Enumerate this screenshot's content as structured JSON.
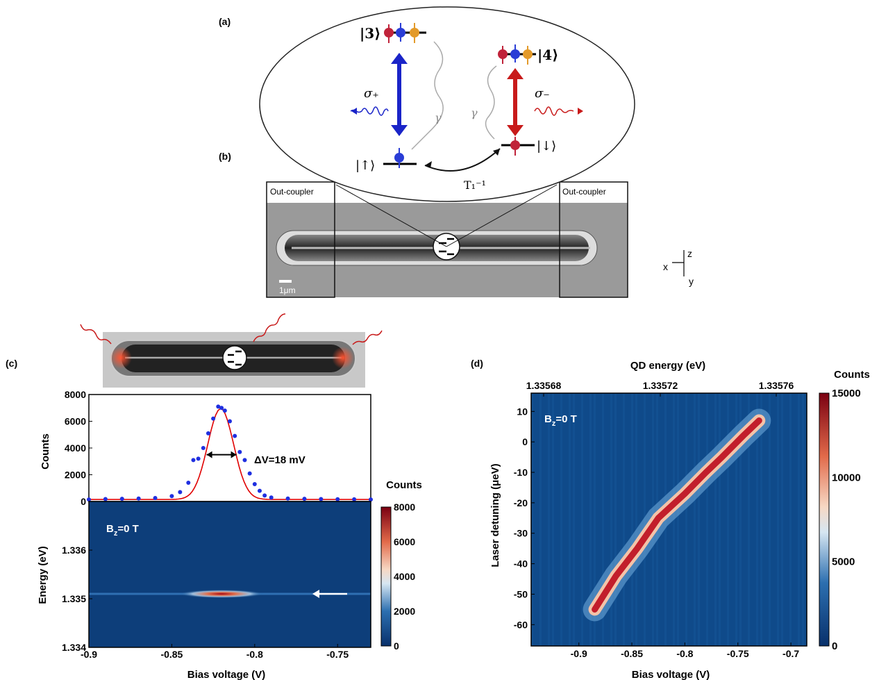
{
  "panel_labels": {
    "a": "(a)",
    "b": "(b)",
    "c": "(c)",
    "d": "(d)"
  },
  "diagram_a": {
    "state3": "|3⟩",
    "state4": "|4⟩",
    "state_up": "|↑⟩",
    "state_down": "|↓⟩",
    "sigma_plus": "σ₊",
    "sigma_minus": "σ₋",
    "gamma": "γ",
    "t1": "T₁⁻¹"
  },
  "diagram_b": {
    "outcoupler_left": "Out-coupler",
    "outcoupler_right": "Out-coupler",
    "scale_bar": "1μm",
    "axes": {
      "x": "x",
      "y": "y",
      "z": "z"
    }
  },
  "chart_data": [
    {
      "type": "scatter",
      "panel": "(c) top",
      "ylabel": "Counts",
      "xlim": [
        -0.9,
        -0.73
      ],
      "ylim": [
        0,
        8000
      ],
      "yticks": [
        "0",
        "2000",
        "4000",
        "6000",
        "8000"
      ],
      "annotation": "ΔV=18 mV",
      "series": [
        {
          "x": [
            -0.9,
            -0.89,
            -0.88,
            -0.87,
            -0.86,
            -0.85,
            -0.845,
            -0.84,
            -0.837,
            -0.834,
            -0.831,
            -0.828,
            -0.825,
            -0.822,
            -0.82,
            -0.818,
            -0.815,
            -0.812,
            -0.809,
            -0.806,
            -0.803,
            -0.8,
            -0.797,
            -0.794,
            -0.79,
            -0.78,
            -0.77,
            -0.76,
            -0.75,
            -0.74,
            -0.73
          ],
          "values": [
            150,
            180,
            200,
            220,
            260,
            400,
            700,
            1400,
            3100,
            3200,
            4000,
            5100,
            6200,
            7100,
            7000,
            6800,
            6000,
            4900,
            3700,
            3100,
            2100,
            1300,
            800,
            450,
            300,
            220,
            200,
            180,
            170,
            160,
            150
          ]
        }
      ]
    },
    {
      "type": "heatmap",
      "panel": "(c) bottom",
      "xlabel": "Bias voltage (V)",
      "ylabel": "Energy (eV)",
      "xlim": [
        -0.9,
        -0.73
      ],
      "ylim": [
        1.334,
        1.337
      ],
      "xticks": [
        "-0.9",
        "-0.85",
        "-0.8",
        "-0.75"
      ],
      "yticks": [
        "1.334",
        "1.335",
        "1.336"
      ],
      "annotation_main": "B",
      "annotation_sub": "z",
      "annotation_rest": "=0 T",
      "colorbar_label": "Counts",
      "colorbar_ticks": [
        "0",
        "2000",
        "4000",
        "6000",
        "8000"
      ],
      "peak": {
        "x": -0.82,
        "y": 1.3351,
        "value": 7000
      }
    },
    {
      "type": "heatmap",
      "panel": "(d)",
      "xlabel": "Bias voltage (V)",
      "ylabel": "Laser detuning (μeV)",
      "top_xlabel": "QD energy (eV)",
      "xlim": [
        -0.945,
        -0.685
      ],
      "ylim": [
        -67,
        16
      ],
      "xticks": [
        "-0.9",
        "-0.85",
        "-0.8",
        "-0.75",
        "-0.7"
      ],
      "yticks": [
        "-60",
        "-50",
        "-40",
        "-30",
        "-20",
        "-10",
        "0",
        "10"
      ],
      "top_xticks": [
        "1.33568",
        "1.33572",
        "1.33576"
      ],
      "annotation_main": "B",
      "annotation_sub": "z",
      "annotation_rest": "=0 T",
      "colorbar_label": "Counts",
      "colorbar_ticks": [
        "0",
        "5000",
        "10000",
        "15000"
      ],
      "ridge": [
        [
          -0.885,
          -55
        ],
        [
          -0.865,
          -44
        ],
        [
          -0.845,
          -35
        ],
        [
          -0.825,
          -25
        ],
        [
          -0.8,
          -17
        ],
        [
          -0.78,
          -10
        ],
        [
          -0.765,
          -5
        ],
        [
          -0.745,
          2
        ],
        [
          -0.73,
          7
        ]
      ]
    }
  ]
}
